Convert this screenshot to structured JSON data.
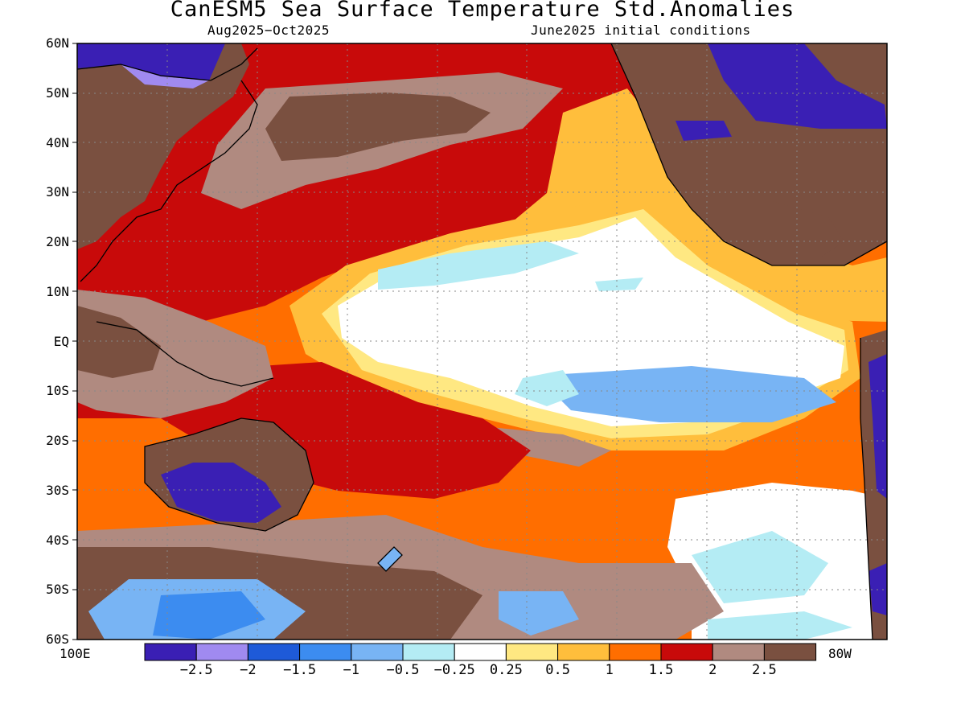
{
  "title": "CanESM5 Sea Surface Temperature Std.Anomalies",
  "subtitle_left": "Aug2025−Oct2025",
  "subtitle_right": "June2025 initial conditions",
  "lat_labels": [
    "60N",
    "50N",
    "40N",
    "30N",
    "20N",
    "10N",
    "EQ",
    "10S",
    "20S",
    "30S",
    "40S",
    "50S",
    "60S"
  ],
  "lon_left_label": "100E",
  "lon_right_label": "80W",
  "colorbar": {
    "colors": [
      "#3a1fb4",
      "#a08af0",
      "#1e5ad8",
      "#3c8cf0",
      "#78b4f4",
      "#b4ecf4",
      "#ffffff",
      "#ffe882",
      "#ffbe3c",
      "#ff6e00",
      "#c80a0a",
      "#b08a80",
      "#7a5040"
    ],
    "labels": [
      "−2.5",
      "−2",
      "−1.5",
      "−1",
      "−0.5",
      "−0.25",
      "0.25",
      "0.5",
      "1",
      "1.5",
      "2",
      "2.5"
    ]
  },
  "field": {
    "lat_range": [
      -60,
      60
    ],
    "lon_range": [
      100,
      280
    ],
    "palette": {
      "land": "#7a5040",
      "white": "#ffffff",
      "lightcyan": "#b4ecf4",
      "lightblue": "#78b4f4",
      "blue": "#3c8cf0",
      "deepblue": "#1e5ad8",
      "indigo": "#3a1fb4",
      "yellow": "#ffe882",
      "gold": "#ffbe3c",
      "orange": "#ff6e00",
      "red": "#c80a0a",
      "rose": "#b08a80"
    }
  }
}
